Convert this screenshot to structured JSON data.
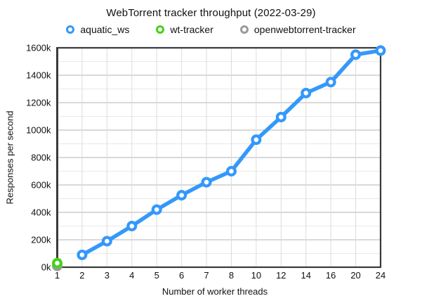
{
  "colors": {
    "background": "#ffffff",
    "text": "#111111"
  },
  "chart_data": {
    "type": "line",
    "title": "WebTorrent tracker throughput (2022-03-29)",
    "xlabel": "Number of worker threads",
    "ylabel": "Responses per second",
    "x_categories": [
      "1",
      "2",
      "3",
      "4",
      "5",
      "6",
      "7",
      "8",
      "10",
      "12",
      "14",
      "16",
      "20",
      "24"
    ],
    "y_axis": {
      "min": 0,
      "max": 1600,
      "major_step": 200,
      "minor_step": 100,
      "unit": "k (thousands of responses per second)",
      "tick_values": [
        0,
        200,
        400,
        600,
        800,
        1000,
        1200,
        1400,
        1600
      ],
      "tick_labels": [
        "0k",
        "200k",
        "400k",
        "600k",
        "800k",
        "1000k",
        "1200k",
        "1400k",
        "1600k"
      ]
    },
    "legend_position": "top",
    "legend": [
      {
        "name": "aquatic_ws",
        "color": "#3498fb"
      },
      {
        "name": "wt-tracker",
        "color": "#44d318"
      },
      {
        "name": "openwebtorrent-tracker",
        "color": "#9b9b9b"
      }
    ],
    "series": [
      {
        "name": "openwebtorrent-tracker",
        "color": "#9b9b9b",
        "points": [
          {
            "x": "1",
            "y": 10
          }
        ]
      },
      {
        "name": "wt-tracker",
        "color": "#44d318",
        "points": [
          {
            "x": "1",
            "y": 30
          }
        ]
      },
      {
        "name": "aquatic_ws",
        "color": "#3498fb",
        "points": [
          {
            "x": "2",
            "y": 90
          },
          {
            "x": "3",
            "y": 190
          },
          {
            "x": "4",
            "y": 300
          },
          {
            "x": "5",
            "y": 420
          },
          {
            "x": "6",
            "y": 525
          },
          {
            "x": "7",
            "y": 620
          },
          {
            "x": "8",
            "y": 700
          },
          {
            "x": "10",
            "y": 930
          },
          {
            "x": "12",
            "y": 1095
          },
          {
            "x": "14",
            "y": 1270
          },
          {
            "x": "16",
            "y": 1350
          },
          {
            "x": "20",
            "y": 1550
          },
          {
            "x": "24",
            "y": 1580
          }
        ]
      }
    ],
    "grid": {
      "show": true,
      "major_color": "#b3b3b3",
      "minor_color": "#e9e9e9",
      "vertical_color": "#dcdcdc",
      "frame_color": "#3a3a3a"
    }
  }
}
